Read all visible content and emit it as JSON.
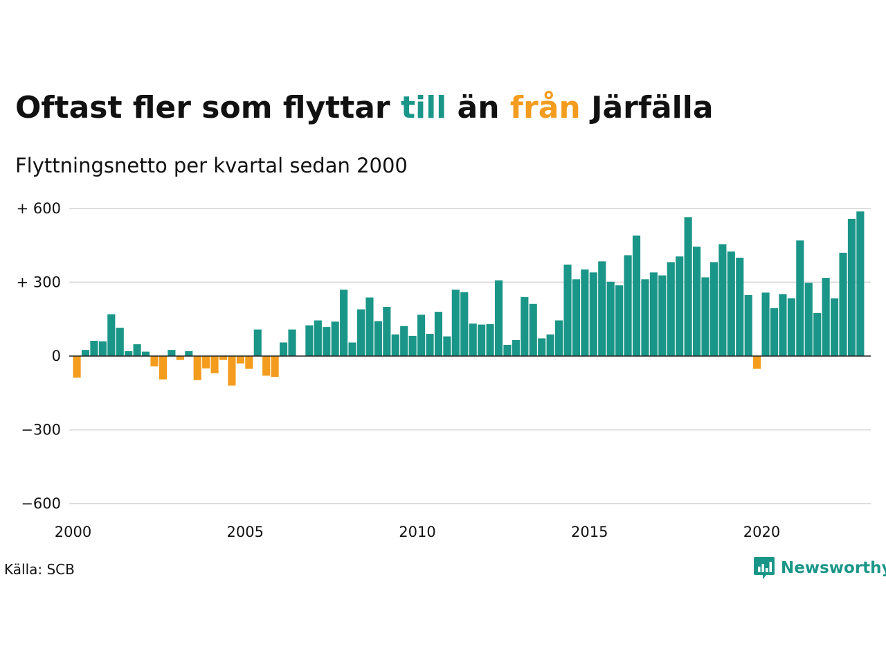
{
  "header": {
    "title_part1": "Oftast fler som flyttar ",
    "title_till": "till",
    "title_part2": " än ",
    "title_fran": "från",
    "title_part3": " Järfälla",
    "subtitle": "Flyttningsnetto per kvartal sedan 2000"
  },
  "footer": {
    "source": "Källa: SCB",
    "brand": "Newsworthy"
  },
  "colors": {
    "positive": "#1a9688",
    "negative": "#f39c1e",
    "grid": "#dddddd",
    "zero_line": "#222222",
    "text": "#111111"
  },
  "chart_data": {
    "type": "bar",
    "title": "Oftast fler som flyttar till än från Järfälla",
    "subtitle": "Flyttningsnetto per kvartal sedan 2000",
    "x_start_year": 2000,
    "periods_per_year": 4,
    "xticks": [
      "2000",
      "2005",
      "2010",
      "2015",
      "2020"
    ],
    "yticks": [
      600,
      300,
      0,
      -300,
      -600
    ],
    "ytick_labels": [
      "+ 600",
      "+ 300",
      "0",
      "−300",
      "−600"
    ],
    "ylim": [
      -600,
      600
    ],
    "grid": true,
    "values": [
      -88,
      25,
      62,
      60,
      170,
      115,
      20,
      48,
      18,
      -42,
      -95,
      25,
      -16,
      20,
      -98,
      -50,
      -70,
      -16,
      -120,
      -30,
      -52,
      108,
      -80,
      -85,
      55,
      108,
      null,
      125,
      145,
      118,
      140,
      270,
      55,
      190,
      238,
      142,
      200,
      88,
      122,
      82,
      168,
      90,
      180,
      80,
      270,
      260,
      132,
      128,
      130,
      308,
      45,
      65,
      240,
      212,
      72,
      88,
      145,
      372,
      312,
      352,
      340,
      385,
      302,
      288,
      410,
      490,
      312,
      340,
      328,
      382,
      405,
      565,
      445,
      320,
      382,
      455,
      425,
      400,
      248,
      -52,
      258,
      195,
      252,
      235,
      470,
      298,
      175,
      318,
      235,
      420,
      558,
      588
    ]
  }
}
